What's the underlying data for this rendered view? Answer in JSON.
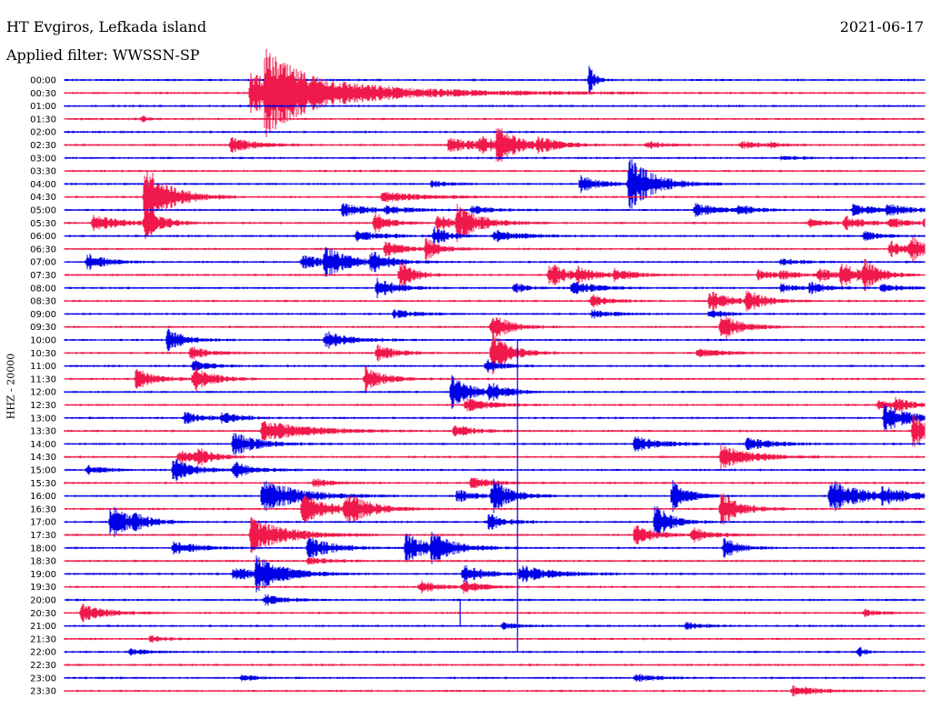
{
  "header": {
    "station": "HT Evgiros, Lefkada island",
    "date": "2021-06-17",
    "filter": "Applied filter: WWSSN-SP"
  },
  "colors": {
    "even_rows": "#0000e6",
    "odd_rows": "#f0194b",
    "background": "#ffffff"
  },
  "chart_data": {
    "type": "line",
    "subtype": "helicorder",
    "ylabel": "HHZ - 20000",
    "row_labels": [
      "00:00",
      "00:30",
      "01:00",
      "01:30",
      "02:00",
      "02:30",
      "03:00",
      "03:30",
      "04:00",
      "04:30",
      "05:00",
      "05:30",
      "06:00",
      "06:30",
      "07:00",
      "07:30",
      "08:00",
      "08:30",
      "09:00",
      "09:30",
      "10:00",
      "10:30",
      "11:00",
      "11:30",
      "12:00",
      "12:30",
      "13:00",
      "13:30",
      "14:00",
      "14:30",
      "15:00",
      "15:30",
      "16:00",
      "16:30",
      "17:00",
      "17:30",
      "18:00",
      "18:30",
      "19:00",
      "19:30",
      "20:00",
      "20:30",
      "21:00",
      "21:30",
      "22:00",
      "22:30",
      "23:00",
      "23:30"
    ],
    "row_minutes": 30,
    "x_range_minutes": [
      0,
      30
    ],
    "grid": false,
    "events": [
      {
        "row": 0,
        "t": 18.3,
        "amp": 1.5,
        "dur": 0.2
      },
      {
        "row": 1,
        "t": 6.5,
        "amp": 1.9,
        "dur": 3.5
      },
      {
        "row": 1,
        "t": 7.0,
        "amp": 2.4,
        "dur": 1.2
      },
      {
        "row": 3,
        "t": 2.7,
        "amp": 0.3,
        "dur": 0.2
      },
      {
        "row": 5,
        "t": 5.8,
        "amp": 0.7,
        "dur": 0.8
      },
      {
        "row": 5,
        "t": 13.4,
        "amp": 0.6,
        "dur": 1.2
      },
      {
        "row": 5,
        "t": 14.5,
        "amp": 0.6,
        "dur": 0.9
      },
      {
        "row": 5,
        "t": 15.1,
        "amp": 1.8,
        "dur": 0.5
      },
      {
        "row": 5,
        "t": 16.5,
        "amp": 0.6,
        "dur": 0.8
      },
      {
        "row": 5,
        "t": 20.3,
        "amp": 0.3,
        "dur": 0.6
      },
      {
        "row": 5,
        "t": 23.6,
        "amp": 0.4,
        "dur": 0.5
      },
      {
        "row": 5,
        "t": 24.6,
        "amp": 0.2,
        "dur": 0.5
      },
      {
        "row": 6,
        "t": 25.0,
        "amp": 0.2,
        "dur": 0.5
      },
      {
        "row": 8,
        "t": 12.8,
        "amp": 0.3,
        "dur": 0.6
      },
      {
        "row": 8,
        "t": 18.0,
        "amp": 0.8,
        "dur": 0.6
      },
      {
        "row": 8,
        "t": 19.7,
        "amp": 2.5,
        "dur": 0.8
      },
      {
        "row": 9,
        "t": 2.8,
        "amp": 3.2,
        "dur": 0.8
      },
      {
        "row": 9,
        "t": 11.1,
        "amp": 0.5,
        "dur": 1.2
      },
      {
        "row": 10,
        "t": 9.7,
        "amp": 0.6,
        "dur": 0.8
      },
      {
        "row": 10,
        "t": 11.2,
        "amp": 0.3,
        "dur": 0.8
      },
      {
        "row": 10,
        "t": 14.2,
        "amp": 0.4,
        "dur": 0.6
      },
      {
        "row": 10,
        "t": 22.0,
        "amp": 0.6,
        "dur": 0.8
      },
      {
        "row": 10,
        "t": 23.5,
        "amp": 0.4,
        "dur": 0.6
      },
      {
        "row": 10,
        "t": 27.5,
        "amp": 0.5,
        "dur": 0.8
      },
      {
        "row": 10,
        "t": 28.7,
        "amp": 0.4,
        "dur": 0.8
      },
      {
        "row": 11,
        "t": 1.0,
        "amp": 0.8,
        "dur": 0.8
      },
      {
        "row": 11,
        "t": 2.8,
        "amp": 1.4,
        "dur": 0.6
      },
      {
        "row": 11,
        "t": 10.8,
        "amp": 1.0,
        "dur": 0.5
      },
      {
        "row": 11,
        "t": 13.0,
        "amp": 0.8,
        "dur": 0.5
      },
      {
        "row": 11,
        "t": 13.7,
        "amp": 1.5,
        "dur": 0.8
      },
      {
        "row": 11,
        "t": 26.0,
        "amp": 0.4,
        "dur": 0.5
      },
      {
        "row": 11,
        "t": 27.2,
        "amp": 0.6,
        "dur": 0.7
      },
      {
        "row": 11,
        "t": 28.8,
        "amp": 0.4,
        "dur": 0.6
      },
      {
        "row": 11,
        "t": 30.0,
        "amp": 0.4,
        "dur": 0.5
      },
      {
        "row": 12,
        "t": 10.2,
        "amp": 0.5,
        "dur": 0.8
      },
      {
        "row": 12,
        "t": 12.9,
        "amp": 0.8,
        "dur": 0.5
      },
      {
        "row": 12,
        "t": 15.0,
        "amp": 0.6,
        "dur": 0.8
      },
      {
        "row": 12,
        "t": 27.9,
        "amp": 0.4,
        "dur": 0.6
      },
      {
        "row": 13,
        "t": 11.2,
        "amp": 0.9,
        "dur": 0.5
      },
      {
        "row": 13,
        "t": 12.6,
        "amp": 1.0,
        "dur": 0.5
      },
      {
        "row": 13,
        "t": 28.8,
        "amp": 0.8,
        "dur": 0.5
      },
      {
        "row": 13,
        "t": 29.5,
        "amp": 1.1,
        "dur": 0.5
      },
      {
        "row": 14,
        "t": 0.8,
        "amp": 0.8,
        "dur": 0.6
      },
      {
        "row": 14,
        "t": 8.3,
        "amp": 0.6,
        "dur": 0.8
      },
      {
        "row": 14,
        "t": 9.1,
        "amp": 1.4,
        "dur": 0.7
      },
      {
        "row": 14,
        "t": 10.7,
        "amp": 1.0,
        "dur": 0.6
      },
      {
        "row": 14,
        "t": 25.0,
        "amp": 0.3,
        "dur": 0.6
      },
      {
        "row": 15,
        "t": 11.7,
        "amp": 1.2,
        "dur": 0.5
      },
      {
        "row": 15,
        "t": 16.9,
        "amp": 1.2,
        "dur": 0.6
      },
      {
        "row": 15,
        "t": 17.9,
        "amp": 0.6,
        "dur": 0.6
      },
      {
        "row": 15,
        "t": 19.2,
        "amp": 0.6,
        "dur": 0.6
      },
      {
        "row": 15,
        "t": 24.2,
        "amp": 0.5,
        "dur": 0.5
      },
      {
        "row": 15,
        "t": 25.0,
        "amp": 0.4,
        "dur": 0.5
      },
      {
        "row": 15,
        "t": 26.3,
        "amp": 0.6,
        "dur": 0.7
      },
      {
        "row": 15,
        "t": 27.1,
        "amp": 1.0,
        "dur": 0.6
      },
      {
        "row": 15,
        "t": 27.9,
        "amp": 1.2,
        "dur": 0.5
      },
      {
        "row": 16,
        "t": 10.9,
        "amp": 1.0,
        "dur": 0.6
      },
      {
        "row": 16,
        "t": 15.7,
        "amp": 0.4,
        "dur": 0.5
      },
      {
        "row": 16,
        "t": 17.7,
        "amp": 0.6,
        "dur": 0.8
      },
      {
        "row": 16,
        "t": 25.0,
        "amp": 0.4,
        "dur": 0.5
      },
      {
        "row": 16,
        "t": 26.0,
        "amp": 0.5,
        "dur": 0.6
      },
      {
        "row": 16,
        "t": 28.5,
        "amp": 0.4,
        "dur": 0.6
      },
      {
        "row": 17,
        "t": 18.4,
        "amp": 0.6,
        "dur": 0.5
      },
      {
        "row": 17,
        "t": 22.5,
        "amp": 1.0,
        "dur": 0.6
      },
      {
        "row": 17,
        "t": 23.8,
        "amp": 1.0,
        "dur": 0.6
      },
      {
        "row": 18,
        "t": 11.5,
        "amp": 0.4,
        "dur": 0.6
      },
      {
        "row": 18,
        "t": 18.4,
        "amp": 0.4,
        "dur": 0.6
      },
      {
        "row": 18,
        "t": 22.5,
        "amp": 0.4,
        "dur": 0.5
      },
      {
        "row": 19,
        "t": 14.9,
        "amp": 1.3,
        "dur": 0.6
      },
      {
        "row": 19,
        "t": 22.9,
        "amp": 1.4,
        "dur": 0.6
      },
      {
        "row": 20,
        "t": 3.6,
        "amp": 1.0,
        "dur": 0.6
      },
      {
        "row": 20,
        "t": 9.1,
        "amp": 0.8,
        "dur": 0.8
      },
      {
        "row": 21,
        "t": 4.4,
        "amp": 0.6,
        "dur": 0.6
      },
      {
        "row": 21,
        "t": 10.9,
        "amp": 0.8,
        "dur": 0.6
      },
      {
        "row": 21,
        "t": 14.9,
        "amp": 2.0,
        "dur": 0.6
      },
      {
        "row": 21,
        "t": 22.1,
        "amp": 0.4,
        "dur": 0.8
      },
      {
        "row": 22,
        "t": 4.5,
        "amp": 0.5,
        "dur": 0.6
      },
      {
        "row": 22,
        "t": 14.7,
        "amp": 0.6,
        "dur": 0.5
      },
      {
        "row": 23,
        "t": 2.5,
        "amp": 1.0,
        "dur": 0.6
      },
      {
        "row": 23,
        "t": 4.5,
        "amp": 1.2,
        "dur": 0.6
      },
      {
        "row": 23,
        "t": 10.5,
        "amp": 1.2,
        "dur": 0.6
      },
      {
        "row": 24,
        "t": 13.5,
        "amp": 1.6,
        "dur": 0.6
      },
      {
        "row": 24,
        "t": 14.8,
        "amp": 0.8,
        "dur": 0.6
      },
      {
        "row": 25,
        "t": 14.0,
        "amp": 0.6,
        "dur": 0.8
      },
      {
        "row": 25,
        "t": 28.4,
        "amp": 0.4,
        "dur": 0.6
      },
      {
        "row": 25,
        "t": 29.0,
        "amp": 0.6,
        "dur": 0.5
      },
      {
        "row": 26,
        "t": 4.2,
        "amp": 0.5,
        "dur": 0.6
      },
      {
        "row": 26,
        "t": 5.5,
        "amp": 0.5,
        "dur": 0.6
      },
      {
        "row": 26,
        "t": 28.6,
        "amp": 1.3,
        "dur": 0.8
      },
      {
        "row": 27,
        "t": 6.9,
        "amp": 1.0,
        "dur": 1.5
      },
      {
        "row": 27,
        "t": 13.6,
        "amp": 0.6,
        "dur": 0.6
      },
      {
        "row": 27,
        "t": 29.6,
        "amp": 1.6,
        "dur": 0.6
      },
      {
        "row": 28,
        "t": 5.9,
        "amp": 1.1,
        "dur": 0.8
      },
      {
        "row": 28,
        "t": 19.9,
        "amp": 0.7,
        "dur": 0.8
      },
      {
        "row": 28,
        "t": 23.8,
        "amp": 0.6,
        "dur": 0.8
      },
      {
        "row": 29,
        "t": 4.0,
        "amp": 0.6,
        "dur": 0.6
      },
      {
        "row": 29,
        "t": 4.6,
        "amp": 0.8,
        "dur": 0.5
      },
      {
        "row": 29,
        "t": 22.9,
        "amp": 1.2,
        "dur": 1.0
      },
      {
        "row": 30,
        "t": 0.8,
        "amp": 0.4,
        "dur": 0.6
      },
      {
        "row": 30,
        "t": 3.8,
        "amp": 1.2,
        "dur": 0.6
      },
      {
        "row": 30,
        "t": 5.9,
        "amp": 0.8,
        "dur": 0.6
      },
      {
        "row": 31,
        "t": 8.7,
        "amp": 0.4,
        "dur": 0.6
      },
      {
        "row": 31,
        "t": 14.2,
        "amp": 0.6,
        "dur": 0.6
      },
      {
        "row": 32,
        "t": 6.9,
        "amp": 1.5,
        "dur": 1.2
      },
      {
        "row": 32,
        "t": 13.7,
        "amp": 0.6,
        "dur": 0.6
      },
      {
        "row": 32,
        "t": 14.9,
        "amp": 1.6,
        "dur": 0.6
      },
      {
        "row": 32,
        "t": 21.2,
        "amp": 1.5,
        "dur": 0.5
      },
      {
        "row": 32,
        "t": 26.7,
        "amp": 1.5,
        "dur": 1.2
      },
      {
        "row": 32,
        "t": 28.5,
        "amp": 0.6,
        "dur": 0.8
      },
      {
        "row": 33,
        "t": 8.3,
        "amp": 1.4,
        "dur": 0.8
      },
      {
        "row": 33,
        "t": 9.8,
        "amp": 1.4,
        "dur": 0.8
      },
      {
        "row": 33,
        "t": 22.9,
        "amp": 1.7,
        "dur": 0.6
      },
      {
        "row": 34,
        "t": 1.6,
        "amp": 1.7,
        "dur": 0.6
      },
      {
        "row": 34,
        "t": 2.4,
        "amp": 0.5,
        "dur": 0.6
      },
      {
        "row": 34,
        "t": 14.8,
        "amp": 0.8,
        "dur": 0.5
      },
      {
        "row": 34,
        "t": 20.6,
        "amp": 1.8,
        "dur": 0.5
      },
      {
        "row": 35,
        "t": 6.5,
        "amp": 1.6,
        "dur": 1.2
      },
      {
        "row": 35,
        "t": 19.9,
        "amp": 1.0,
        "dur": 0.6
      },
      {
        "row": 35,
        "t": 21.9,
        "amp": 0.7,
        "dur": 0.6
      },
      {
        "row": 36,
        "t": 3.8,
        "amp": 0.6,
        "dur": 0.8
      },
      {
        "row": 36,
        "t": 8.5,
        "amp": 1.0,
        "dur": 0.8
      },
      {
        "row": 36,
        "t": 11.9,
        "amp": 1.3,
        "dur": 0.8
      },
      {
        "row": 36,
        "t": 12.8,
        "amp": 1.0,
        "dur": 0.8
      },
      {
        "row": 36,
        "t": 23.0,
        "amp": 1.0,
        "dur": 0.5
      },
      {
        "row": 37,
        "t": 8.5,
        "amp": 0.4,
        "dur": 0.6
      },
      {
        "row": 38,
        "t": 5.9,
        "amp": 0.6,
        "dur": 1.2
      },
      {
        "row": 38,
        "t": 6.7,
        "amp": 1.5,
        "dur": 0.8
      },
      {
        "row": 38,
        "t": 13.9,
        "amp": 1.0,
        "dur": 0.6
      },
      {
        "row": 38,
        "t": 15.9,
        "amp": 0.8,
        "dur": 1.0
      },
      {
        "row": 39,
        "t": 12.4,
        "amp": 0.6,
        "dur": 0.6
      },
      {
        "row": 39,
        "t": 13.9,
        "amp": 0.6,
        "dur": 0.6
      },
      {
        "row": 40,
        "t": 7.0,
        "amp": 0.5,
        "dur": 0.6
      },
      {
        "row": 41,
        "t": 0.6,
        "amp": 0.8,
        "dur": 0.8
      },
      {
        "row": 41,
        "t": 27.9,
        "amp": 0.3,
        "dur": 0.5
      },
      {
        "row": 42,
        "t": 15.3,
        "amp": 0.3,
        "dur": 0.5
      },
      {
        "row": 42,
        "t": 21.7,
        "amp": 0.3,
        "dur": 0.5
      },
      {
        "row": 43,
        "t": 3.0,
        "amp": 0.3,
        "dur": 0.5
      },
      {
        "row": 44,
        "t": 2.3,
        "amp": 0.3,
        "dur": 0.5
      },
      {
        "row": 44,
        "t": 27.7,
        "amp": 0.5,
        "dur": 0.2
      },
      {
        "row": 46,
        "t": 6.2,
        "amp": 0.3,
        "dur": 0.5
      },
      {
        "row": 46,
        "t": 19.9,
        "amp": 0.4,
        "dur": 0.6
      },
      {
        "row": 47,
        "t": 25.4,
        "amp": 0.5,
        "dur": 0.8
      }
    ],
    "spikes": [
      {
        "t": 15.8,
        "row_from": 20,
        "row_to": 44
      },
      {
        "t": 13.8,
        "row_from": 40,
        "row_to": 42
      }
    ]
  }
}
